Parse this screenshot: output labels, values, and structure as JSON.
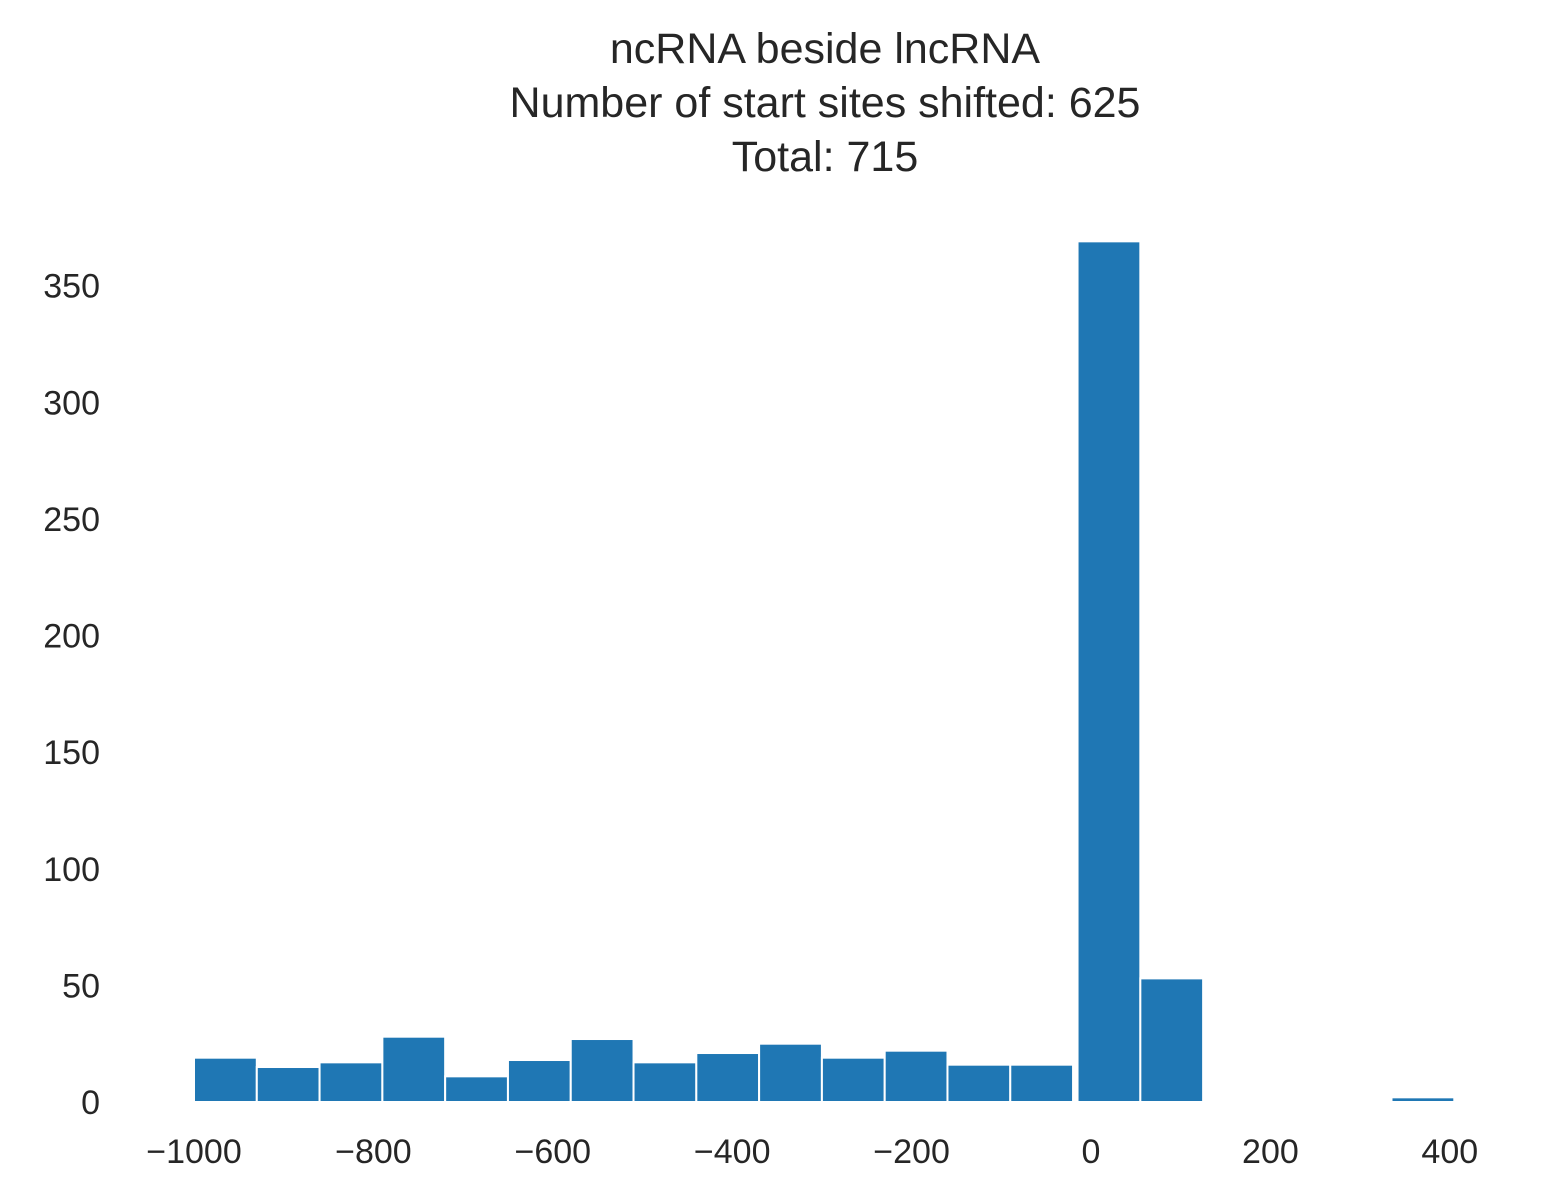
{
  "chart_data": {
    "type": "bar",
    "title_lines": [
      "ncRNA beside lncRNA",
      "Number of start sites shifted: 625",
      "Total: 715"
    ],
    "xlabel": "",
    "ylabel": "",
    "xlim": [
      -1100,
      450
    ],
    "ylim": [
      0,
      370
    ],
    "xticks": [
      -1000,
      -800,
      -600,
      -400,
      -200,
      0,
      200,
      400
    ],
    "xtick_labels": [
      "−1000",
      "−800",
      "−600",
      "−400",
      "−200",
      "0",
      "200",
      "400"
    ],
    "yticks": [
      0,
      50,
      100,
      150,
      200,
      250,
      300,
      350
    ],
    "ytick_labels": [
      "0",
      "50",
      "100",
      "150",
      "200",
      "250",
      "300",
      "350"
    ],
    "grid": false,
    "color": "#1f77b4",
    "bins": [
      {
        "start": -1000,
        "end": -930,
        "value": 19
      },
      {
        "start": -930,
        "end": -860,
        "value": 15
      },
      {
        "start": -860,
        "end": -790,
        "value": 17
      },
      {
        "start": -790,
        "end": -720,
        "value": 28
      },
      {
        "start": -720,
        "end": -650,
        "value": 11
      },
      {
        "start": -650,
        "end": -580,
        "value": 18
      },
      {
        "start": -580,
        "end": -510,
        "value": 27
      },
      {
        "start": -510,
        "end": -440,
        "value": 17
      },
      {
        "start": -440,
        "end": -370,
        "value": 21
      },
      {
        "start": -370,
        "end": -300,
        "value": 25
      },
      {
        "start": -300,
        "end": -230,
        "value": 19
      },
      {
        "start": -230,
        "end": -160,
        "value": 22
      },
      {
        "start": -160,
        "end": -90,
        "value": 16
      },
      {
        "start": -90,
        "end": -20,
        "value": 16
      },
      {
        "start": -15,
        "end": 55,
        "value": 369
      },
      {
        "start": 55,
        "end": 125,
        "value": 53
      },
      {
        "start": 125,
        "end": 195,
        "value": 0
      },
      {
        "start": 195,
        "end": 265,
        "value": 0.5
      },
      {
        "start": 265,
        "end": 335,
        "value": 0
      },
      {
        "start": 335,
        "end": 405,
        "value": 2
      }
    ]
  }
}
